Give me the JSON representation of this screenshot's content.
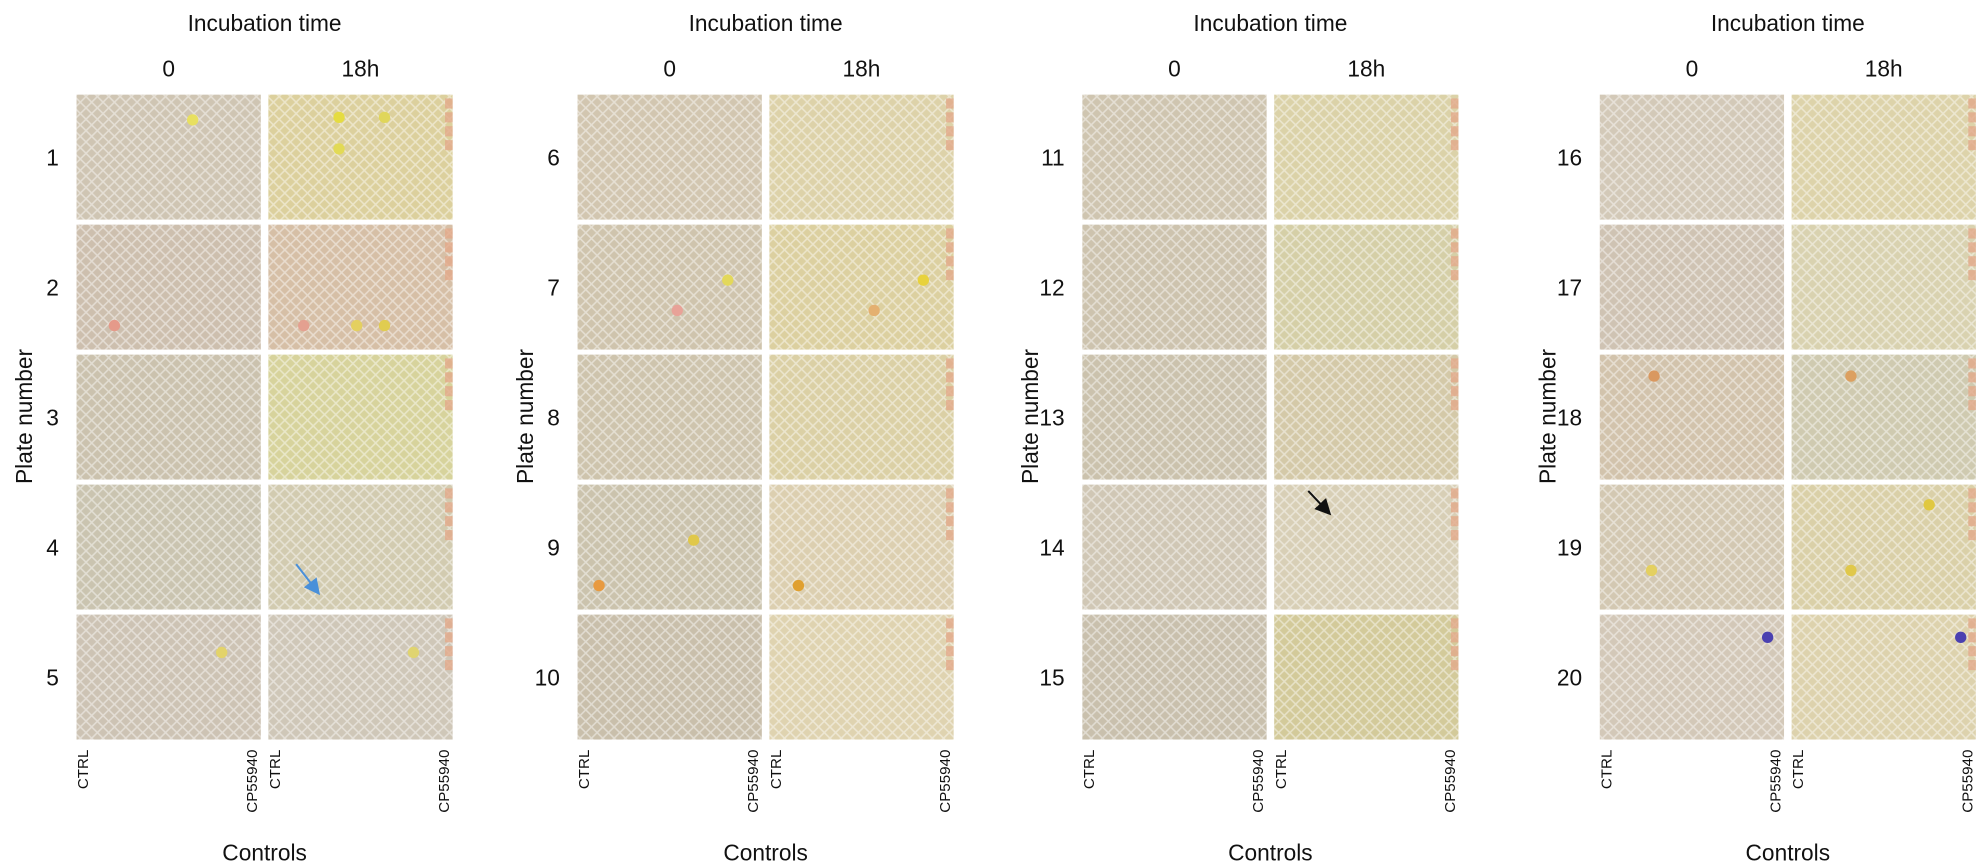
{
  "panels": [
    {
      "title": "Incubation time",
      "columns": [
        "0",
        "18h"
      ],
      "y_label": "Plate number",
      "rows": [
        "1",
        "2",
        "3",
        "4",
        "5"
      ],
      "controls": [
        [
          "CTRL",
          "CP55940"
        ],
        [
          "CTRL",
          "CP55940"
        ]
      ],
      "x_label": "Controls"
    },
    {
      "title": "Incubation time",
      "columns": [
        "0",
        "18h"
      ],
      "y_label": "Plate number",
      "rows": [
        "6",
        "7",
        "8",
        "9",
        "10"
      ],
      "controls": [
        [
          "CTRL",
          "CP55940"
        ],
        [
          "CTRL",
          "CP55940"
        ]
      ],
      "x_label": "Controls"
    },
    {
      "title": "Incubation time",
      "columns": [
        "0",
        "18h"
      ],
      "y_label": "Plate number",
      "rows": [
        "11",
        "12",
        "13",
        "14",
        "15"
      ],
      "controls": [
        [
          "CTRL",
          "CP55940"
        ],
        [
          "CTRL",
          "CP55940"
        ]
      ],
      "x_label": "Controls"
    },
    {
      "title": "Incubation time",
      "columns": [
        "0",
        "18h"
      ],
      "y_label": "Plate number",
      "rows": [
        "16",
        "17",
        "18",
        "19",
        "20"
      ],
      "controls": [
        [
          "CTRL",
          "CP55940"
        ],
        [
          "CTRL",
          "CP55940"
        ]
      ],
      "x_label": "Controls"
    }
  ]
}
